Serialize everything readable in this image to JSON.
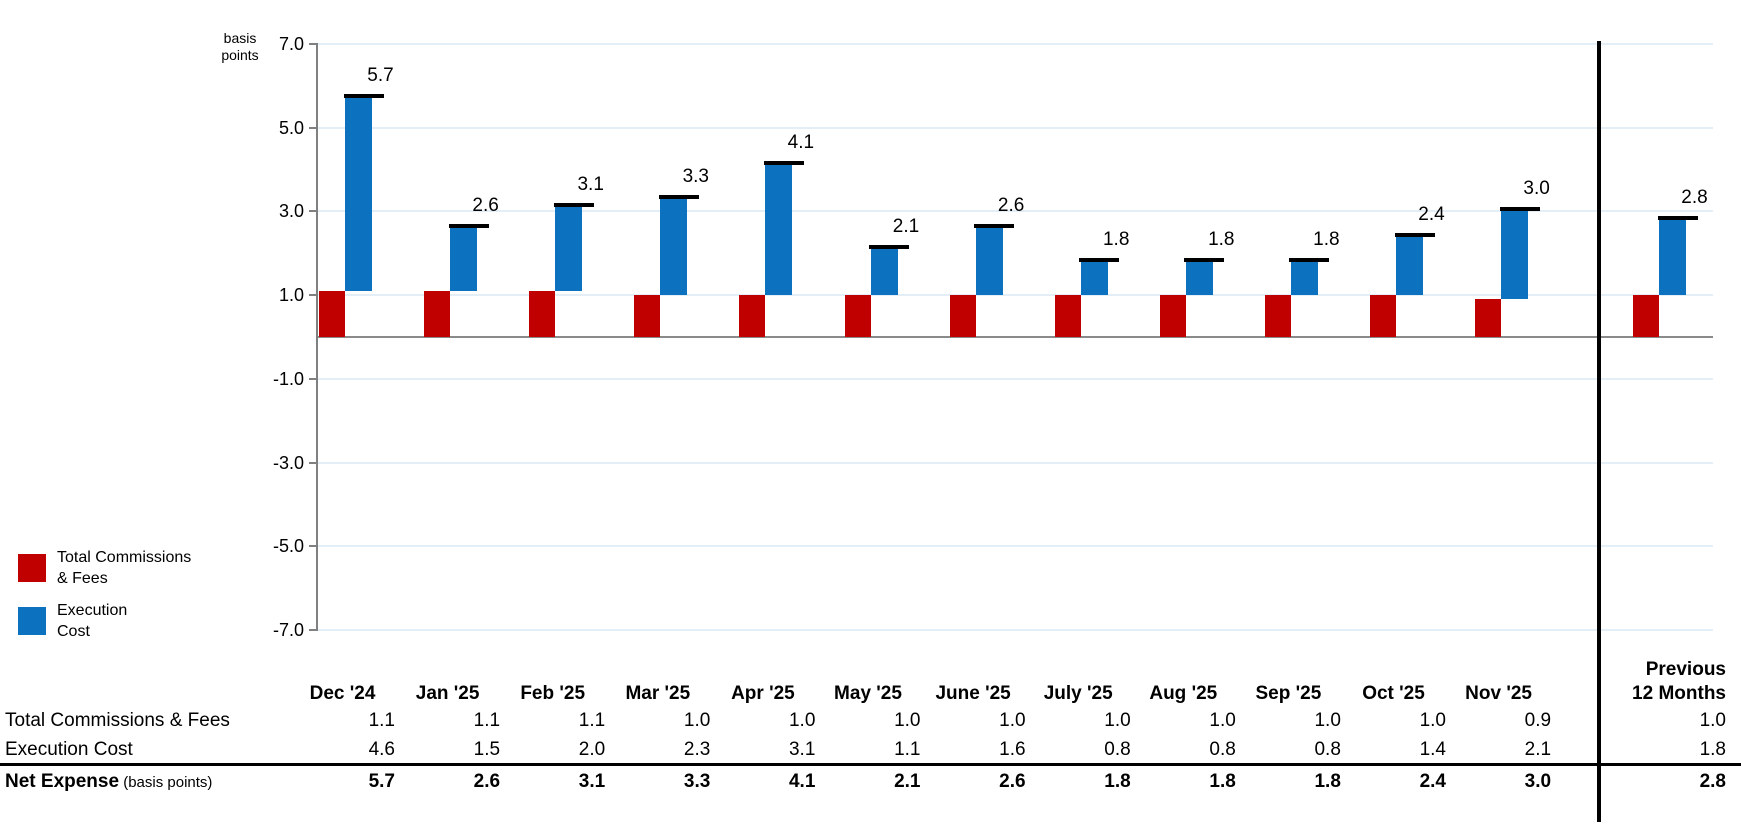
{
  "chart": {
    "unit_label": [
      "basis",
      "points"
    ],
    "y_ticks": [
      "7.0",
      "5.0",
      "3.0",
      "1.0",
      "-1.0",
      "-3.0",
      "-5.0",
      "-7.0"
    ],
    "colors": {
      "commissions": "#C00000",
      "execution": "#0C71BE",
      "grid": "#E4EEF7",
      "zero_line": "#8A8A8A",
      "axis": "#808080",
      "cap": "#000000",
      "divider": "#000000"
    }
  },
  "legend": {
    "items": [
      {
        "id": "total-commissions-fees",
        "lines": [
          "Total Commissions",
          "& Fees"
        ],
        "color": "#C00000"
      },
      {
        "id": "execution-cost",
        "lines": [
          "Execution",
          "Cost"
        ],
        "color": "#0C71BE"
      }
    ]
  },
  "chart_data": {
    "type": "bar",
    "stacked": true,
    "categories": [
      "Dec '24",
      "Jan '25",
      "Feb '25",
      "Mar '25",
      "Apr '25",
      "May '25",
      "June '25",
      "July '25",
      "Aug '25",
      "Sep '25",
      "Oct '25",
      "Nov '25",
      "Previous 12 Months"
    ],
    "series": [
      {
        "name": "Total Commissions & Fees",
        "color": "#C00000",
        "values": [
          1.1,
          1.1,
          1.1,
          1.0,
          1.0,
          1.0,
          1.0,
          1.0,
          1.0,
          1.0,
          1.0,
          0.9,
          1.0
        ]
      },
      {
        "name": "Execution Cost",
        "color": "#0C71BE",
        "values": [
          4.6,
          1.5,
          2.0,
          2.3,
          3.1,
          1.1,
          1.6,
          0.8,
          0.8,
          0.8,
          1.4,
          2.1,
          1.8
        ]
      }
    ],
    "totals": [
      5.7,
      2.6,
      3.1,
      3.3,
      4.1,
      2.1,
      2.6,
      1.8,
      1.8,
      1.8,
      2.4,
      3.0,
      2.8
    ],
    "total_labels": [
      "5.7",
      "2.6",
      "3.1",
      "3.3",
      "4.1",
      "2.1",
      "2.6",
      "1.8",
      "1.8",
      "1.8",
      "2.4",
      "3.0",
      "2.8"
    ],
    "ylabel": "basis points",
    "ylim": [
      -7.0,
      7.0
    ],
    "grid": true,
    "gridline_values": [
      7,
      5,
      3,
      1,
      -1,
      -3,
      -5,
      -7
    ],
    "legend_position": "bottom-left"
  },
  "table": {
    "columns": [
      "Dec '24",
      "Jan '25",
      "Feb '25",
      "Mar '25",
      "Apr '25",
      "May '25",
      "June '25",
      "July '25",
      "Aug '25",
      "Sep '25",
      "Oct '25",
      "Nov '25"
    ],
    "prev_header": [
      "Previous",
      "12 Months"
    ],
    "rows": [
      {
        "label": "Total Commissions & Fees",
        "suffix": "",
        "bold": false,
        "values": [
          "1.1",
          "1.1",
          "1.1",
          "1.0",
          "1.0",
          "1.0",
          "1.0",
          "1.0",
          "1.0",
          "1.0",
          "1.0",
          "0.9"
        ],
        "prev": "1.0"
      },
      {
        "label": "Execution Cost",
        "suffix": "",
        "bold": false,
        "values": [
          "4.6",
          "1.5",
          "2.0",
          "2.3",
          "3.1",
          "1.1",
          "1.6",
          "0.8",
          "0.8",
          "0.8",
          "1.4",
          "2.1"
        ],
        "prev": "1.8"
      },
      {
        "label": "Net Expense",
        "suffix": "(basis points)",
        "bold": true,
        "values": [
          "5.7",
          "2.6",
          "3.1",
          "3.3",
          "4.1",
          "2.1",
          "2.6",
          "1.8",
          "1.8",
          "1.8",
          "2.4",
          "3.0"
        ],
        "prev": "2.8"
      }
    ]
  }
}
